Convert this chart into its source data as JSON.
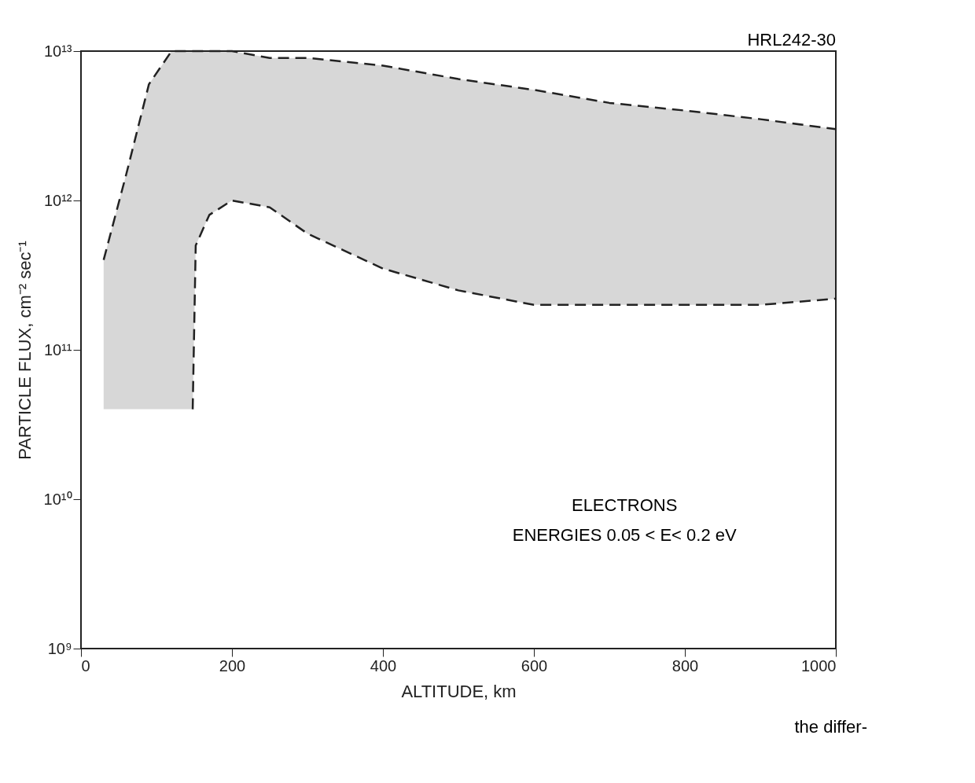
{
  "chart_data": {
    "type": "line",
    "xlabel": "ALTITUDE, km",
    "ylabel": "PARTICLE FLUX, cm⁻² sec⁻¹",
    "x": [
      30,
      60,
      90,
      120,
      148,
      152,
      170,
      200,
      250,
      300,
      400,
      500,
      600,
      700,
      800,
      900,
      1000
    ],
    "series": [
      {
        "color": "#222222",
        "values": [
          400000000000.0,
          1500000000000.0,
          6000000000000.0,
          10000000000000.0,
          10000000000000.0,
          10000000000000.0,
          10000000000000.0,
          10000000000000.0,
          9000000000000.0,
          9000000000000.0,
          8000000000000.0,
          6500000000000.0,
          5500000000000.0,
          4500000000000.0,
          4000000000000.0,
          3500000000000.0,
          3000000000000.0
        ],
        "lower": [
          40000000000.0,
          40000000000.0,
          40000000000.0,
          40000000000.0,
          40000000000.0,
          500000000000.0,
          800000000000.0,
          1000000000000.0,
          900000000000.0,
          600000000000.0,
          350000000000.0,
          250000000000.0,
          200000000000.0,
          200000000000.0,
          200000000000.0,
          200000000000.0,
          220000000000.0
        ],
        "upper": [
          400000000000.0,
          1500000000000.0,
          6000000000000.0,
          10000000000000.0,
          10000000000000.0,
          10000000000000.0,
          10000000000000.0,
          10000000000000.0,
          9000000000000.0,
          9000000000000.0,
          8000000000000.0,
          6500000000000.0,
          5500000000000.0,
          4500000000000.0,
          4000000000000.0,
          3500000000000.0,
          3000000000000.0
        ]
      },
      {
        "color": "#222222",
        "values": [
          null,
          null,
          null,
          null,
          40000000000.0,
          500000000000.0,
          800000000000.0,
          1000000000000.0,
          900000000000.0,
          600000000000.0,
          350000000000.0,
          250000000000.0,
          200000000000.0,
          200000000000.0,
          200000000000.0,
          200000000000.0,
          220000000000.0
        ]
      }
    ],
    "line_style": "dashed",
    "marker": "none",
    "log": "y",
    "xlim": [
      0,
      1000
    ],
    "xticks": [
      0,
      200,
      400,
      600,
      800,
      {
        "value": 1000,
        "label": "1000"
      }
    ],
    "ylim": [
      1000000000.0,
      10000000000000.0
    ],
    "yticks": [
      {
        "value": 1000000000.0,
        "label": "10⁹"
      },
      {
        "value": 10000000000.0,
        "label": "10¹⁰"
      },
      {
        "value": 100000000000.0,
        "label": "10¹¹"
      },
      {
        "value": 1000000000000.0,
        "label": "10¹²"
      },
      {
        "value": 10000000000000.0,
        "label": "10¹³"
      }
    ],
    "grid": false,
    "annotations": [
      "ELECTRONS",
      "ENERGIES 0.05 < E< 0.2 eV",
      "HRL242-30",
      "the differ-"
    ]
  }
}
